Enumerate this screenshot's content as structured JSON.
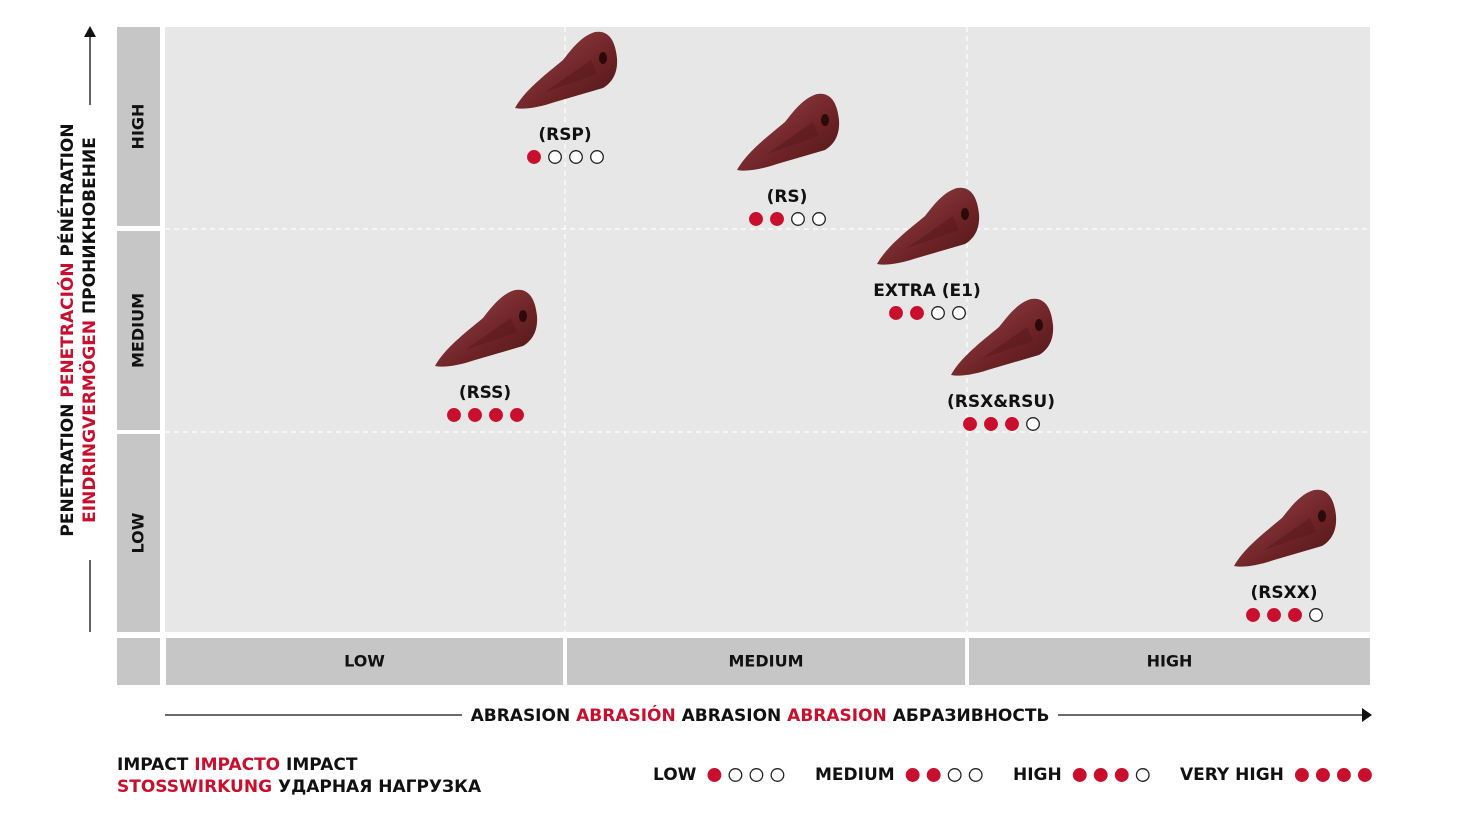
{
  "y_axis": {
    "title_lines": [
      [
        {
          "text": "PENETRATION",
          "highlight": false
        },
        {
          "text": "PENETRACIÓN",
          "highlight": true
        },
        {
          "text": "PÉNÉTRATION",
          "highlight": false
        }
      ],
      [
        {
          "text": "EINDRINGVERMÖGEN",
          "highlight": true
        },
        {
          "text": "ПРОНИКНОВЕНИЕ",
          "highlight": false
        }
      ]
    ],
    "levels": [
      "HIGH",
      "MEDIUM",
      "LOW"
    ]
  },
  "x_axis": {
    "title": [
      {
        "text": "ABRASION",
        "highlight": false
      },
      {
        "text": "ABRASIÓN",
        "highlight": true
      },
      {
        "text": "ABRASION",
        "highlight": false
      },
      {
        "text": "ABRASION",
        "highlight": true
      },
      {
        "text": "АБРАЗИВНОСТЬ",
        "highlight": false
      }
    ],
    "levels": [
      "LOW",
      "MEDIUM",
      "HIGH"
    ]
  },
  "products": [
    {
      "label": "(RSP)",
      "impact": 1
    },
    {
      "label": "(RS)",
      "impact": 2
    },
    {
      "label": "EXTRA (E1)",
      "impact": 2
    },
    {
      "label": "(RSS)",
      "impact": 4
    },
    {
      "label": "(RSX&RSU)",
      "impact": 3
    },
    {
      "label": "(RSXX)",
      "impact": 3
    }
  ],
  "impact_legend": {
    "title_lines": [
      [
        {
          "text": "IMPACT",
          "highlight": false
        },
        {
          "text": "IMPACTO",
          "highlight": true
        },
        {
          "text": "IMPACT",
          "highlight": false
        }
      ],
      [
        {
          "text": "STOSSWIRKUNG",
          "highlight": true
        },
        {
          "text": "УДАРНАЯ НАГРУЗКА",
          "highlight": false
        }
      ]
    ],
    "scale_max": 4,
    "levels": [
      {
        "label": "LOW",
        "impact": 1
      },
      {
        "label": "MEDIUM",
        "impact": 2
      },
      {
        "label": "HIGH",
        "impact": 3
      },
      {
        "label": "VERY HIGH",
        "impact": 4
      }
    ]
  }
}
